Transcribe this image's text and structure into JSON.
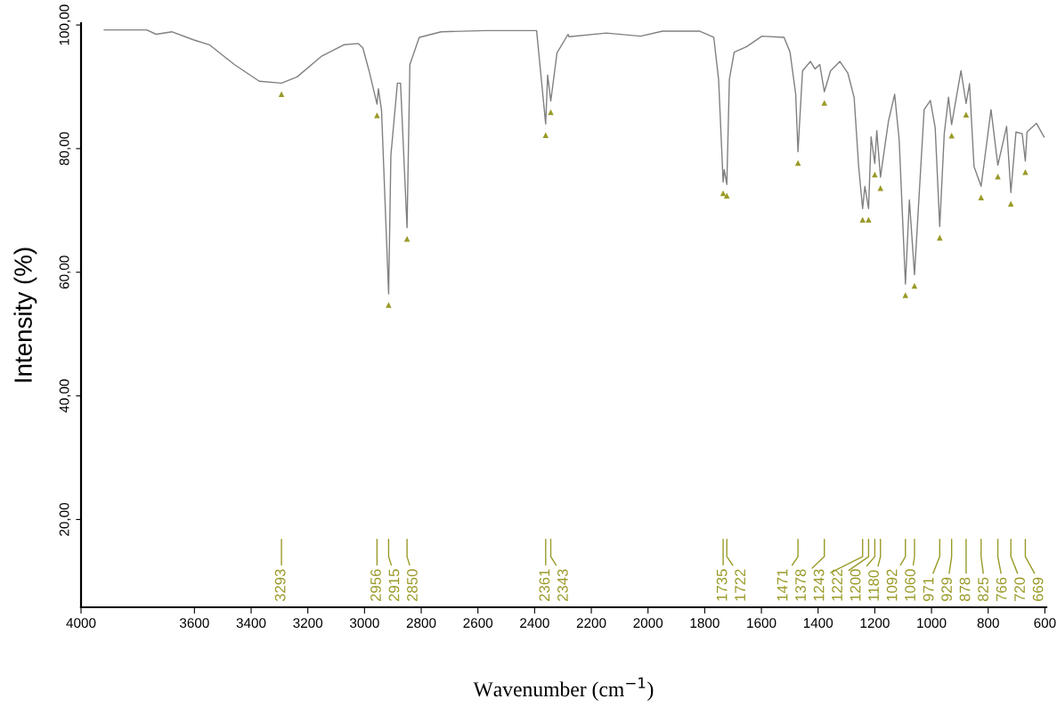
{
  "chart_data": {
    "type": "line",
    "xlabel": "Wavenumber (cm$^{−1}$)",
    "ylabel": "Intensity (%)",
    "xlim": [
      4000,
      595
    ],
    "ylim": [
      5.8,
      100.3
    ],
    "xticks": [
      4000,
      3600,
      3400,
      3200,
      3000,
      2800,
      2600,
      2400,
      2200,
      2000,
      1800,
      1600,
      1400,
      1200,
      1000,
      800,
      600
    ],
    "yticks": [
      {
        "value": 20,
        "label": "20,00"
      },
      {
        "value": 40,
        "label": "40,00"
      },
      {
        "value": 60,
        "label": "60,00"
      },
      {
        "value": 80,
        "label": "80,00"
      },
      {
        "value": 100,
        "label": "100,00"
      }
    ],
    "grid": false,
    "legend": false,
    "marker": "none",
    "line_style": "solid",
    "series": [
      {
        "color": "#808080",
        "x": [
          3918,
          3768,
          3735,
          3680,
          3603,
          3547,
          3459,
          3371,
          3293,
          3238,
          3150,
          3073,
          3022,
          3006,
          2984,
          2956,
          2951,
          2940,
          2915,
          2907,
          2884,
          2873,
          2850,
          2840,
          2807,
          2730,
          2575,
          2393,
          2361,
          2354,
          2343,
          2321,
          2282,
          2279,
          2147,
          2026,
          1949,
          1817,
          1768,
          1751,
          1735,
          1731,
          1722,
          1713,
          1696,
          1652,
          1598,
          1520,
          1499,
          1479,
          1471,
          1455,
          1427,
          1411,
          1394,
          1378,
          1356,
          1323,
          1295,
          1273,
          1257,
          1243,
          1235,
          1222,
          1213,
          1200,
          1193,
          1180,
          1152,
          1130,
          1114,
          1092,
          1078,
          1060,
          1026,
          1004,
          987,
          971,
          955,
          940,
          929,
          896,
          878,
          866,
          850,
          825,
          790,
          766,
          735,
          720,
          702,
          680,
          669,
          663,
          630,
          603
        ],
        "values": [
          99.2,
          99.2,
          98.5,
          98.9,
          97.6,
          96.8,
          93.6,
          90.9,
          90.6,
          91.6,
          95.0,
          96.8,
          97.0,
          96.3,
          92.6,
          87.2,
          89.7,
          86.2,
          56.5,
          78.9,
          90.6,
          90.6,
          67.2,
          93.6,
          98.0,
          98.9,
          99.1,
          99.1,
          84.0,
          91.9,
          87.7,
          95.5,
          98.5,
          98.1,
          98.7,
          98.2,
          99.0,
          99.0,
          98.0,
          91.2,
          74.6,
          76.6,
          74.2,
          91.2,
          95.6,
          96.5,
          98.2,
          98.0,
          95.6,
          88.8,
          79.5,
          92.6,
          94.1,
          92.9,
          93.6,
          89.2,
          92.6,
          94.1,
          92.2,
          88.3,
          77.1,
          70.3,
          73.9,
          70.3,
          81.9,
          77.6,
          82.9,
          75.4,
          84.4,
          88.8,
          81.4,
          58.1,
          71.7,
          59.6,
          86.3,
          87.8,
          83.4,
          67.4,
          82.4,
          88.3,
          83.9,
          92.6,
          87.3,
          90.5,
          77.1,
          73.9,
          86.3,
          77.3,
          83.6,
          72.9,
          82.7,
          82.4,
          78.0,
          82.7,
          84.1,
          81.9
        ]
      },
      {
        "type": "scatter",
        "color": "#9a9a28",
        "marker": "triangle",
        "x": [
          3293,
          2956,
          2915,
          2850,
          2361,
          2343,
          1735,
          1722,
          1471,
          1378,
          1243,
          1222,
          1200,
          1180,
          1092,
          1060,
          971,
          929,
          878,
          825,
          766,
          720,
          669
        ],
        "values": [
          88.8,
          85.4,
          54.7,
          65.4,
          82.2,
          85.9,
          72.8,
          72.4,
          77.7,
          87.4,
          68.5,
          68.5,
          75.8,
          73.6,
          56.3,
          57.8,
          65.6,
          82.1,
          85.5,
          72.1,
          75.5,
          71.1,
          76.2
        ]
      }
    ],
    "annotations": [
      "3293",
      "2956",
      "2915",
      "2850",
      "2361",
      "2343",
      "1735",
      "1722",
      "1471",
      "1378",
      "1243",
      "1222",
      "1200",
      "1180",
      "1092",
      "1060",
      "971",
      "929",
      "878",
      "825",
      "766",
      "720",
      "669"
    ]
  }
}
